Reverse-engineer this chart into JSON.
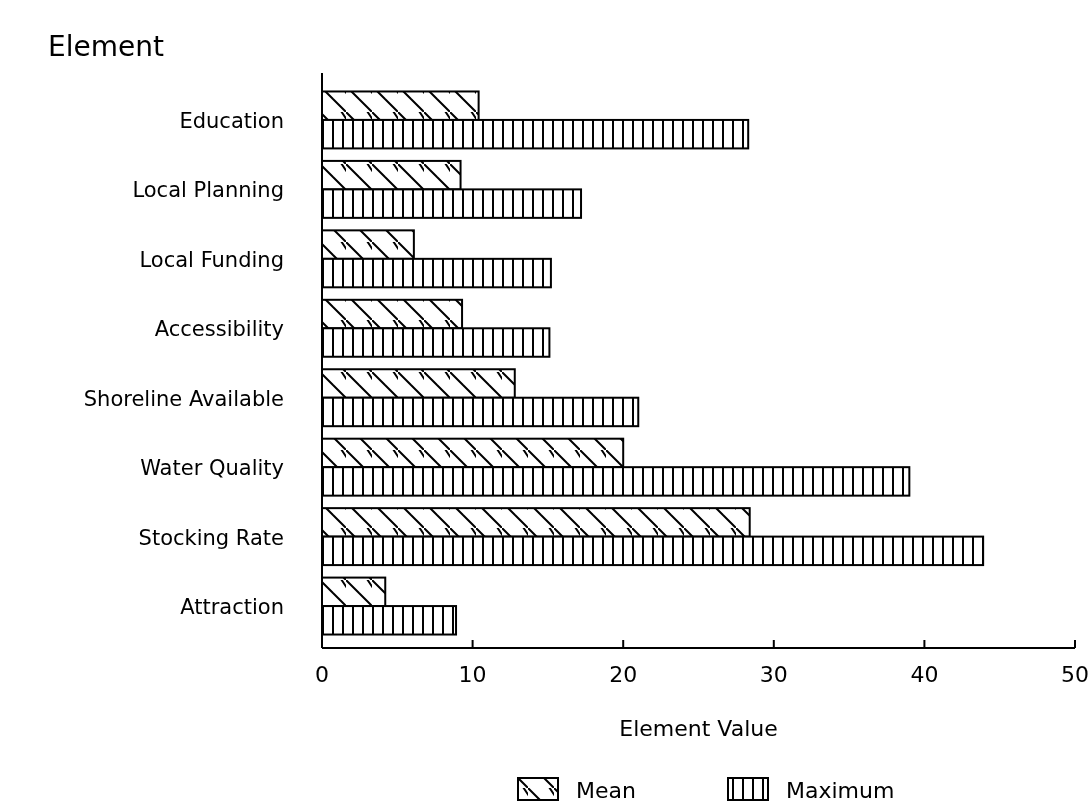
{
  "chart_data": {
    "type": "bar",
    "orientation": "horizontal",
    "ylabel": "Element",
    "xlabel": "Element Value",
    "categories": [
      "Education",
      "Local Planning",
      "Local Funding",
      "Accessibility",
      "Shoreline Available",
      "Water Quality",
      "Stocking Rate",
      "Attraction"
    ],
    "series": [
      {
        "name": "Mean",
        "color": "#000000",
        "values": [
          10.4,
          9.2,
          6.1,
          9.3,
          12.8,
          20.0,
          28.4,
          4.2
        ]
      },
      {
        "name": "Maximum",
        "color": "#000000",
        "values": [
          28.3,
          17.2,
          15.2,
          15.1,
          21.0,
          39.0,
          43.9,
          8.9
        ]
      }
    ],
    "xlim": [
      0,
      50
    ],
    "xticks": [
      0,
      10,
      20,
      30,
      40,
      50
    ],
    "grid": false,
    "legend": "bottom"
  }
}
